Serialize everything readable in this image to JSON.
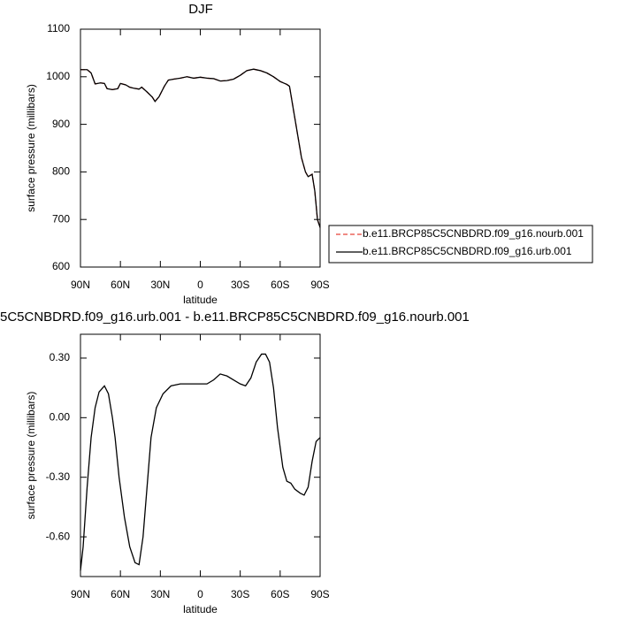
{
  "chart_data": [
    {
      "type": "line",
      "title": "DJF",
      "xlabel": "latitude",
      "ylabel": "surface pressure (millibars)",
      "xlim": [
        90,
        -90
      ],
      "ylim": [
        600,
        1100
      ],
      "xticks": [
        {
          "value": 90,
          "label": "90N"
        },
        {
          "value": 60,
          "label": "60N"
        },
        {
          "value": 30,
          "label": "30N"
        },
        0,
        {
          "value": -30,
          "label": "30S"
        },
        {
          "value": -60,
          "label": "60S"
        },
        {
          "value": -90,
          "label": "90S"
        }
      ],
      "yticks": [
        600,
        700,
        800,
        900,
        1000,
        1100
      ],
      "x": [
        90,
        85,
        82,
        79,
        75,
        72,
        70,
        66,
        62,
        60,
        56,
        53,
        50,
        46,
        44,
        40,
        36,
        34,
        31,
        27,
        24,
        20,
        15,
        10,
        5,
        0,
        -5,
        -10,
        -15,
        -20,
        -25,
        -30,
        -35,
        -40,
        -45,
        -50,
        -55,
        -60,
        -65,
        -67,
        -70,
        -73,
        -76,
        -79,
        -81,
        -84,
        -86,
        -88,
        -90
      ],
      "series": [
        {
          "name": "b.e11.BRCP85C5CNBDRD.f09_g16.nourb.001",
          "color": "#e8433a",
          "linestyle": "dashed",
          "values": [
            1015,
            1015,
            1008,
            985,
            987,
            986,
            975,
            973,
            975,
            986,
            983,
            978,
            976,
            974,
            978,
            968,
            957,
            948,
            958,
            980,
            993,
            995,
            997,
            1000,
            997,
            999,
            997,
            996,
            991,
            992,
            995,
            1003,
            1013,
            1016,
            1013,
            1008,
            1000,
            990,
            984,
            980,
            930,
            880,
            830,
            800,
            790,
            795,
            760,
            700,
            683
          ]
        },
        {
          "name": "b.e11.BRCP85C5CNBDRD.f09_g16.urb.001",
          "color": "#000000",
          "linestyle": "solid",
          "values": [
            1015,
            1015,
            1008,
            985,
            987,
            986,
            975,
            973,
            975,
            986,
            983,
            978,
            976,
            974,
            978,
            968,
            957,
            948,
            958,
            980,
            993,
            995,
            997,
            1000,
            997,
            999,
            997,
            996,
            991,
            992,
            995,
            1003,
            1013,
            1016,
            1013,
            1008,
            1000,
            990,
            984,
            980,
            930,
            880,
            830,
            800,
            790,
            795,
            760,
            700,
            683
          ]
        }
      ]
    },
    {
      "type": "line",
      "title": "5C5CNBDRD.f09_g16.urb.001 - b.e11.BRCP85C5CNBDRD.f09_g16.nourb.001",
      "xlabel": "latitude",
      "ylabel": "surface pressure (millibars)",
      "xlim": [
        90,
        -90
      ],
      "ylim": [
        -0.8,
        0.42
      ],
      "xticks": [
        {
          "value": 90,
          "label": "90N"
        },
        {
          "value": 60,
          "label": "60N"
        },
        {
          "value": 30,
          "label": "30N"
        },
        0,
        {
          "value": -30,
          "label": "30S"
        },
        {
          "value": -60,
          "label": "60S"
        },
        {
          "value": -90,
          "label": "90S"
        }
      ],
      "yticks": [
        {
          "value": -0.6,
          "label": "-0.60"
        },
        {
          "value": -0.3,
          "label": "-0.30"
        },
        {
          "value": 0,
          "label": "0.00"
        },
        {
          "value": 0.3,
          "label": "0.30"
        }
      ],
      "x": [
        90,
        88,
        85,
        82,
        79,
        76,
        72,
        69,
        66,
        64,
        61,
        57,
        53,
        49,
        46,
        43,
        40,
        37,
        33,
        28,
        22,
        15,
        10,
        5,
        0,
        -5,
        -10,
        -15,
        -20,
        -25,
        -30,
        -34,
        -38,
        -42,
        -46,
        -49,
        -52,
        -55,
        -58,
        -62,
        -65,
        -68,
        -71,
        -75,
        -78,
        -81,
        -84,
        -87,
        -90
      ],
      "series": [
        {
          "color": "#000000",
          "linestyle": "solid",
          "values": [
            -0.77,
            -0.65,
            -0.35,
            -0.1,
            0.05,
            0.13,
            0.16,
            0.12,
            0.0,
            -0.1,
            -0.3,
            -0.5,
            -0.65,
            -0.73,
            -0.74,
            -0.6,
            -0.35,
            -0.1,
            0.05,
            0.12,
            0.16,
            0.17,
            0.17,
            0.17,
            0.17,
            0.17,
            0.19,
            0.22,
            0.21,
            0.19,
            0.17,
            0.16,
            0.2,
            0.28,
            0.32,
            0.32,
            0.28,
            0.15,
            -0.05,
            -0.25,
            -0.32,
            -0.33,
            -0.36,
            -0.38,
            -0.39,
            -0.35,
            -0.22,
            -0.12,
            -0.1
          ]
        }
      ]
    }
  ]
}
